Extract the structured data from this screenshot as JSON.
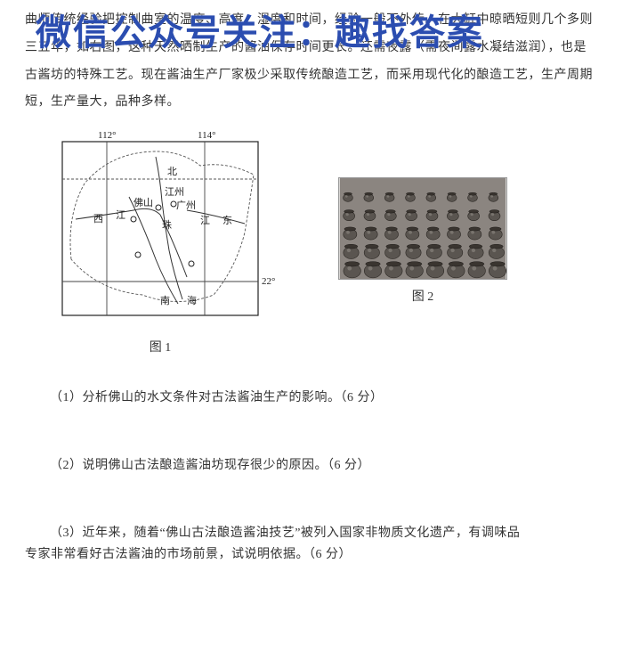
{
  "watermark": "微信公众号关注：趣找答案",
  "paragraph": "曲师传统经验把控制曲室的温度、高度、湿度和时间，经验一般不外传。在大缸中晾晒短则几个多则三五年，如右图，这种天然晒制生产的酱油保存时间更长。还需夜露（需夜间露水凝结滋润），也是古酱坊的特殊工艺。现在酱油生产厂家极少采取传统酿造工艺，而采用现代化的酿造工艺，生产周期短，生产量大，品种多样。",
  "map": {
    "caption": "图 1",
    "lon_labels": [
      "112°",
      "114°"
    ],
    "lat_labels": [
      "22°"
    ],
    "places": [
      "北",
      "江州",
      "广州",
      "佛山",
      "西",
      "江",
      "珠",
      "江",
      "东",
      "南",
      "海"
    ],
    "colors": {
      "frame": "#222222",
      "grid": "#444444",
      "dashed": "#555555",
      "river": "#333333"
    }
  },
  "photo": {
    "caption": "图 2",
    "grid": {
      "rows": 5,
      "cols": 8
    },
    "colors": {
      "pot": "#5a5550",
      "rim": "#3a3530",
      "bg": "#8b8580"
    }
  },
  "questions": {
    "q1": "（1）分析佛山的水文条件对古法酱油生产的影响。（6 分）",
    "q2": "（2）说明佛山古法酿造酱油坊现存很少的原因。（6 分）",
    "q3a": "（3）近年来，随着“佛山古法酿造酱油技艺”被列入国家非物质文化遗产，有调味品",
    "q3b": "专家非常看好古法酱油的市场前景，试说明依据。（6 分）"
  }
}
